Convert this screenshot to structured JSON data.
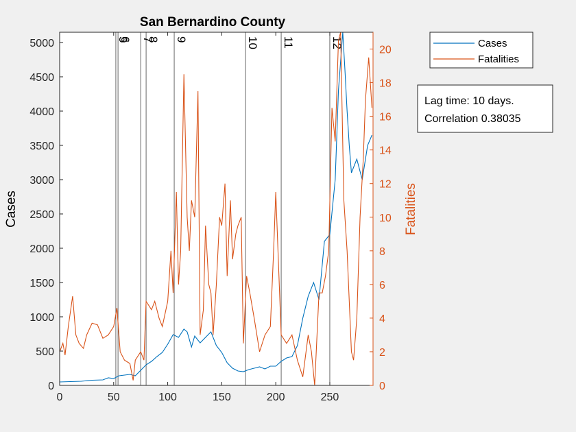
{
  "chart_data": {
    "type": "line",
    "title": "San Bernardino County",
    "xlabel": "",
    "ylabel_left": "Cases",
    "ylabel_right": "Fatalities",
    "xlim": [
      0,
      290
    ],
    "ylim_left": [
      0,
      5150
    ],
    "ylim_right": [
      0,
      21
    ],
    "x_ticks": [
      0,
      50,
      100,
      150,
      200,
      250
    ],
    "y_ticks_left": [
      0,
      500,
      1000,
      1500,
      2000,
      2500,
      3000,
      3500,
      4000,
      4500,
      5000
    ],
    "y_ticks_right": [
      0,
      2,
      4,
      6,
      8,
      10,
      12,
      14,
      16,
      18,
      20
    ],
    "colors": {
      "cases": "#0072BD",
      "fatalities": "#D95319",
      "right_axis": "#D95319"
    },
    "legend_position": "outside-top-right",
    "legend": [
      "Cases",
      "Fatalities"
    ],
    "annotation": [
      "Lag time: 10 days.",
      "Correlation 0.38035"
    ],
    "vlines": [
      {
        "x": 52,
        "label": "5"
      },
      {
        "x": 54,
        "label": "6"
      },
      {
        "x": 75,
        "label": "7"
      },
      {
        "x": 80,
        "label": "8"
      },
      {
        "x": 106,
        "label": "9"
      },
      {
        "x": 172,
        "label": "10"
      },
      {
        "x": 205,
        "label": "11"
      },
      {
        "x": 250,
        "label": "12"
      }
    ],
    "series": [
      {
        "name": "Cases",
        "axis": "left",
        "x": [
          0,
          10,
          20,
          30,
          40,
          45,
          50,
          55,
          60,
          65,
          70,
          75,
          80,
          85,
          90,
          95,
          100,
          105,
          110,
          115,
          118,
          122,
          125,
          130,
          135,
          140,
          145,
          150,
          155,
          160,
          165,
          170,
          175,
          180,
          185,
          190,
          195,
          200,
          205,
          210,
          215,
          220,
          225,
          230,
          235,
          240,
          245,
          250,
          255,
          258,
          262,
          264,
          266,
          268,
          270,
          275,
          280,
          285,
          289
        ],
        "values": [
          50,
          55,
          60,
          75,
          80,
          110,
          100,
          140,
          150,
          160,
          140,
          220,
          300,
          350,
          420,
          480,
          600,
          740,
          700,
          820,
          780,
          560,
          720,
          620,
          700,
          780,
          580,
          480,
          330,
          250,
          210,
          200,
          230,
          250,
          270,
          240,
          280,
          280,
          350,
          400,
          420,
          580,
          980,
          1300,
          1500,
          1250,
          2100,
          2200,
          3000,
          4300,
          5150,
          4600,
          4000,
          3500,
          3100,
          3300,
          3000,
          3500,
          3650
        ]
      },
      {
        "name": "Fatalities",
        "axis": "right",
        "x": [
          0,
          3,
          5,
          8,
          12,
          15,
          18,
          22,
          25,
          30,
          35,
          40,
          45,
          50,
          53,
          56,
          60,
          65,
          68,
          70,
          75,
          78,
          80,
          85,
          88,
          92,
          95,
          100,
          103,
          105,
          108,
          110,
          112,
          115,
          118,
          120,
          122,
          125,
          128,
          130,
          133,
          135,
          138,
          140,
          142,
          145,
          148,
          150,
          153,
          155,
          158,
          160,
          163,
          165,
          168,
          170,
          173,
          176,
          180,
          185,
          190,
          195,
          198,
          200,
          205,
          210,
          215,
          220,
          225,
          230,
          233,
          236,
          240,
          243,
          246,
          249,
          252,
          255,
          258,
          260,
          263,
          266,
          270,
          272,
          275,
          278,
          281,
          283,
          286,
          289
        ],
        "values": [
          2.0,
          2.5,
          1.8,
          3.5,
          5.3,
          3.0,
          2.5,
          2.2,
          3.0,
          3.7,
          3.6,
          2.8,
          3.0,
          3.5,
          4.6,
          2.0,
          1.5,
          1.3,
          0.3,
          1.5,
          2.0,
          1.5,
          5.0,
          4.5,
          5.0,
          4.0,
          3.5,
          5.0,
          8.0,
          5.5,
          11.5,
          6.0,
          8.0,
          18.5,
          10.0,
          8.0,
          11.0,
          10.0,
          17.5,
          3.0,
          4.5,
          9.5,
          6.0,
          5.5,
          3.0,
          6.0,
          10.0,
          9.5,
          12.0,
          6.5,
          11.0,
          7.5,
          9.0,
          9.5,
          10.0,
          2.5,
          6.5,
          5.5,
          4.0,
          2.0,
          3.0,
          3.5,
          8.0,
          11.5,
          3.0,
          2.5,
          3.0,
          1.5,
          0.5,
          3.0,
          2.0,
          0.0,
          5.5,
          5.5,
          6.5,
          8.0,
          16.5,
          14.5,
          20.5,
          21.0,
          11.0,
          8.0,
          2.0,
          1.5,
          4.0,
          10.0,
          13.5,
          17.0,
          19.5,
          16.5
        ]
      }
    ]
  }
}
